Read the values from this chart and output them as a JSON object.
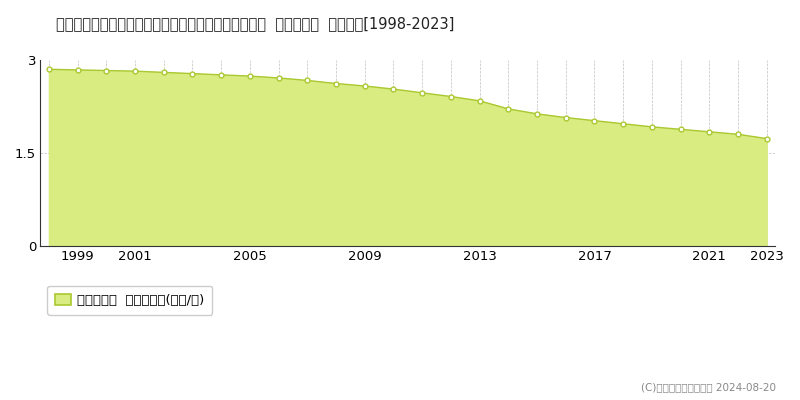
{
  "title": "福島県河沼郡柳津町大字細八字根柄巻乙１３８番３３  基準地価格  地価推移[1998-2023]",
  "years": [
    1998,
    1999,
    2000,
    2001,
    2002,
    2003,
    2004,
    2005,
    2006,
    2007,
    2008,
    2009,
    2010,
    2011,
    2012,
    2013,
    2014,
    2015,
    2016,
    2017,
    2018,
    2019,
    2020,
    2021,
    2022,
    2023
  ],
  "values": [
    2.85,
    2.84,
    2.83,
    2.82,
    2.8,
    2.78,
    2.76,
    2.74,
    2.71,
    2.67,
    2.62,
    2.58,
    2.53,
    2.47,
    2.41,
    2.34,
    2.21,
    2.13,
    2.07,
    2.02,
    1.97,
    1.92,
    1.88,
    1.84,
    1.8,
    1.73
  ],
  "line_color": "#aac830",
  "fill_color": "#d8ec82",
  "marker_facecolor": "#ffffff",
  "marker_edgecolor": "#aac830",
  "grid_color": "#b0b0b0",
  "background_color": "#ffffff",
  "ylim": [
    0,
    3.0
  ],
  "yticks": [
    0,
    1.5,
    3
  ],
  "xticks": [
    1999,
    2001,
    2005,
    2009,
    2013,
    2017,
    2021,
    2023
  ],
  "legend_label": "基準地価格  平均坪単価(万円/坪)",
  "copyright_text": "(C)土地価格ドットコム 2024-08-20",
  "title_fontsize": 10.5,
  "tick_fontsize": 9.5,
  "legend_fontsize": 9.5,
  "copyright_fontsize": 7.5
}
